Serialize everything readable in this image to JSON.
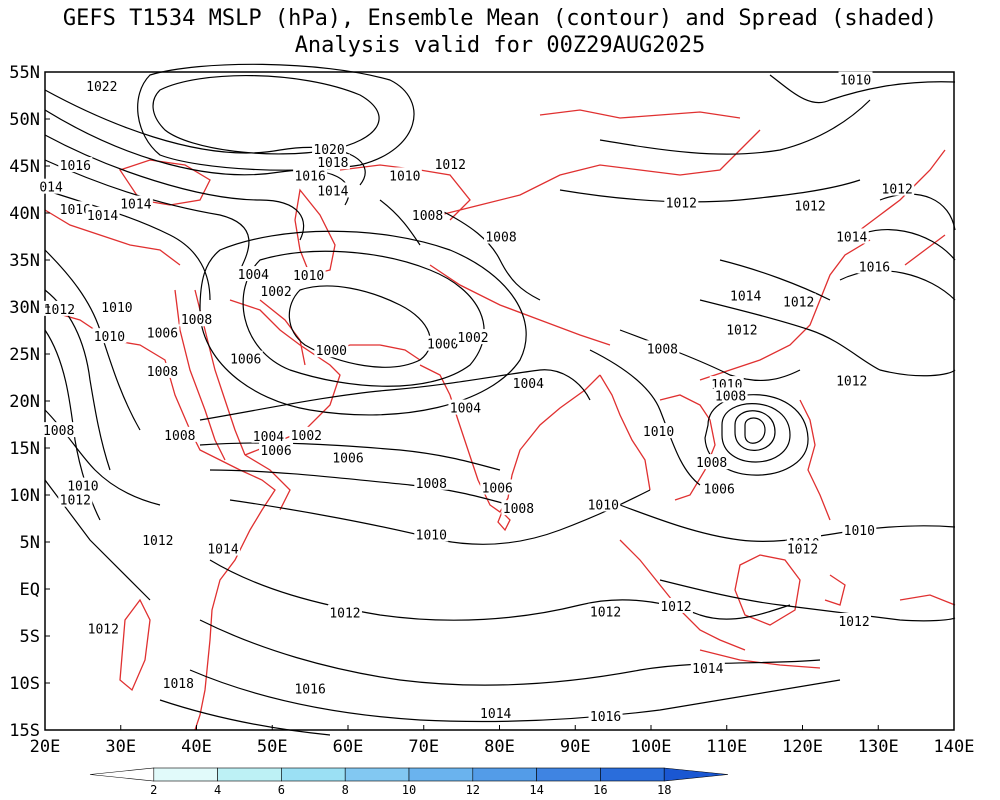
{
  "title_line1": "GEFS T1534 MSLP (hPa), Ensemble Mean (contour) and Spread (shaded)",
  "title_line2": "Analysis valid for 00Z29AUG2025",
  "lat_labels": [
    "55N",
    "50N",
    "45N",
    "40N",
    "35N",
    "30N",
    "25N",
    "20N",
    "15N",
    "10N",
    "5N",
    "EQ",
    "5S",
    "10S",
    "15S"
  ],
  "lon_labels": [
    "20E",
    "30E",
    "40E",
    "50E",
    "60E",
    "70E",
    "80E",
    "90E",
    "100E",
    "110E",
    "120E",
    "130E",
    "140E"
  ],
  "colorbar": {
    "ticks": [
      "2",
      "4",
      "6",
      "8",
      "10",
      "12",
      "14",
      "16",
      "18"
    ],
    "colors": [
      "#ffffff",
      "#e1fafa",
      "#bdf1f5",
      "#9be0f4",
      "#82c8f2",
      "#6ab3ee",
      "#539ce8",
      "#3f84e2",
      "#2a6ddb",
      "#1a57d2"
    ]
  },
  "isobars": [
    {
      "label": "1022",
      "lon": 27.5,
      "lat": 53.5
    },
    {
      "label": "1020",
      "lon": 57.5,
      "lat": 46.8
    },
    {
      "label": "1018",
      "lon": 58,
      "lat": 45.4
    },
    {
      "label": "1016",
      "lon": 24,
      "lat": 45.1
    },
    {
      "label": "1016",
      "lon": 55,
      "lat": 44
    },
    {
      "label": "014",
      "lon": 20.8,
      "lat": 42.8
    },
    {
      "label": "1014",
      "lon": 58,
      "lat": 42.4
    },
    {
      "label": "1016",
      "lon": 24,
      "lat": 40.4
    },
    {
      "label": "1014",
      "lon": 27.6,
      "lat": 39.8
    },
    {
      "label": "1014",
      "lon": 32,
      "lat": 41
    },
    {
      "label": "1012",
      "lon": 73.5,
      "lat": 45.2
    },
    {
      "label": "1010",
      "lon": 67.5,
      "lat": 44
    },
    {
      "label": "1008",
      "lon": 70.5,
      "lat": 39.8
    },
    {
      "label": "1008",
      "lon": 80.2,
      "lat": 37.5
    },
    {
      "label": "1004",
      "lon": 47.5,
      "lat": 33.5
    },
    {
      "label": "1010",
      "lon": 54.8,
      "lat": 33.4
    },
    {
      "label": "1002",
      "lon": 50.5,
      "lat": 31.7
    },
    {
      "label": "1012",
      "lon": 21.9,
      "lat": 29.8
    },
    {
      "label": "1010",
      "lon": 29.5,
      "lat": 30
    },
    {
      "label": "1008",
      "lon": 40,
      "lat": 28.7
    },
    {
      "label": "1006",
      "lon": 35.5,
      "lat": 27.3
    },
    {
      "label": "1010",
      "lon": 28.5,
      "lat": 26.9
    },
    {
      "label": "1006",
      "lon": 46.5,
      "lat": 24.5
    },
    {
      "label": "1000",
      "lon": 57.8,
      "lat": 25.4
    },
    {
      "label": "1000",
      "lon": 72.5,
      "lat": 26.1
    },
    {
      "label": "1002",
      "lon": 76.5,
      "lat": 26.8
    },
    {
      "label": "1008",
      "lon": 35.5,
      "lat": 23.2
    },
    {
      "label": "1004",
      "lon": 83.8,
      "lat": 21.9
    },
    {
      "label": "1004",
      "lon": 75.5,
      "lat": 19.3
    },
    {
      "label": "1008",
      "lon": 21.8,
      "lat": 16.9
    },
    {
      "label": "1008",
      "lon": 37.8,
      "lat": 16.4
    },
    {
      "label": "1004",
      "lon": 49.5,
      "lat": 16.3
    },
    {
      "label": "1002",
      "lon": 54.5,
      "lat": 16.4
    },
    {
      "label": "1006",
      "lon": 50.5,
      "lat": 14.8
    },
    {
      "label": "1006",
      "lon": 60,
      "lat": 14
    },
    {
      "label": "1008",
      "lon": 71,
      "lat": 11.3
    },
    {
      "label": "1006",
      "lon": 79.7,
      "lat": 10.8
    },
    {
      "label": "1008",
      "lon": 82.5,
      "lat": 8.6
    },
    {
      "label": "1010",
      "lon": 25,
      "lat": 11
    },
    {
      "label": "1012",
      "lon": 24,
      "lat": 9.5
    },
    {
      "label": "1010",
      "lon": 71,
      "lat": 5.8
    },
    {
      "label": "1012",
      "lon": 34.9,
      "lat": 5.2
    },
    {
      "label": "1014",
      "lon": 43.5,
      "lat": 4.3
    },
    {
      "label": "1012",
      "lon": 59.6,
      "lat": -2.5
    },
    {
      "label": "1012",
      "lon": 94,
      "lat": -2.4
    },
    {
      "label": "1012",
      "lon": 103.3,
      "lat": -1.8
    },
    {
      "label": "1012",
      "lon": 27.7,
      "lat": -4.2
    },
    {
      "label": "1018",
      "lon": 37.6,
      "lat": -10
    },
    {
      "label": "1016",
      "lon": 55,
      "lat": -10.6
    },
    {
      "label": "1014",
      "lon": 79.5,
      "lat": -13.2
    },
    {
      "label": "1016",
      "lon": 94,
      "lat": -13.5
    },
    {
      "label": "1014",
      "lon": 107.5,
      "lat": -8.4
    },
    {
      "label": "1012",
      "lon": 126.8,
      "lat": -3.4
    },
    {
      "label": "1010",
      "lon": 120.2,
      "lat": 4.9
    },
    {
      "label": "1012",
      "lon": 120,
      "lat": 4.3
    },
    {
      "label": "1010",
      "lon": 127.5,
      "lat": 6.3
    },
    {
      "label": "1010",
      "lon": 93.7,
      "lat": 9
    },
    {
      "label": "1010",
      "lon": 101,
      "lat": 16.8
    },
    {
      "label": "1010",
      "lon": 110,
      "lat": 21.8
    },
    {
      "label": "1008",
      "lon": 101.5,
      "lat": 25.6
    },
    {
      "label": "1008",
      "lon": 110.5,
      "lat": 20.6
    },
    {
      "label": "1008",
      "lon": 108,
      "lat": 13.5
    },
    {
      "label": "1006",
      "lon": 109,
      "lat": 10.7
    },
    {
      "label": "1014",
      "lon": 112.5,
      "lat": 31.2
    },
    {
      "label": "1012",
      "lon": 119.5,
      "lat": 30.6
    },
    {
      "label": "1012",
      "lon": 112,
      "lat": 27.6
    },
    {
      "label": "1012",
      "lon": 126.5,
      "lat": 22.2
    },
    {
      "label": "1012",
      "lon": 121,
      "lat": 40.8
    },
    {
      "label": "1012",
      "lon": 104,
      "lat": 41.1
    },
    {
      "label": "1014",
      "lon": 126.5,
      "lat": 37.5
    },
    {
      "label": "1012",
      "lon": 132.5,
      "lat": 42.6
    },
    {
      "label": "1016",
      "lon": 129.5,
      "lat": 34.3
    },
    {
      "label": "1010",
      "lon": 127,
      "lat": 54.2
    }
  ]
}
